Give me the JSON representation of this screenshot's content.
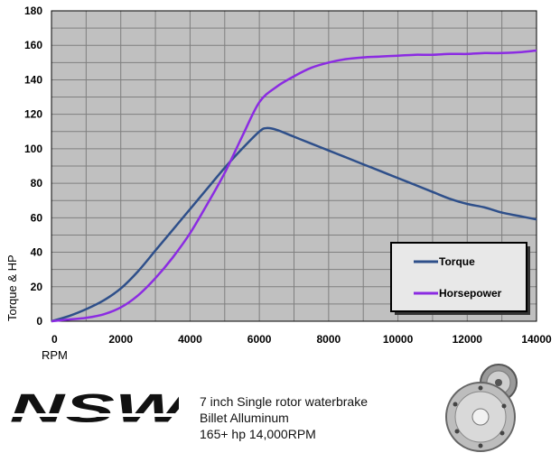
{
  "chart_data": {
    "type": "line",
    "xlabel": "RPM",
    "ylabel": "Torque & HP",
    "xlim": [
      0,
      14000
    ],
    "ylim": [
      0,
      180
    ],
    "x_ticks": [
      0,
      2000,
      4000,
      6000,
      8000,
      10000,
      12000,
      14000
    ],
    "y_ticks": [
      0,
      20,
      40,
      60,
      80,
      100,
      120,
      140,
      160,
      180
    ],
    "x_minor_step": 1000,
    "y_minor_step": 10,
    "grid": true,
    "background": "#c0c0c0",
    "legend_position": "bottom-right",
    "series": [
      {
        "name": "Torque",
        "color": "#2e4f8a",
        "x": [
          0,
          500,
          1000,
          1500,
          2000,
          2500,
          3000,
          3500,
          4000,
          4500,
          5000,
          5500,
          6000,
          6200,
          6500,
          7000,
          7500,
          8000,
          8500,
          9000,
          9500,
          10000,
          10500,
          11000,
          11500,
          12000,
          12500,
          13000,
          13500,
          14000
        ],
        "y": [
          0,
          3,
          7,
          12,
          19,
          29,
          41,
          53,
          65,
          77,
          89,
          100,
          110,
          112,
          111,
          107,
          103,
          99,
          95,
          91,
          87,
          83,
          79,
          75,
          71,
          68,
          66,
          63,
          61,
          59
        ]
      },
      {
        "name": "Horsepower",
        "color": "#8b2be2",
        "x": [
          0,
          500,
          1000,
          1500,
          2000,
          2500,
          3000,
          3500,
          4000,
          4500,
          5000,
          5500,
          6000,
          6500,
          7000,
          7500,
          8000,
          8500,
          9000,
          9500,
          10000,
          10500,
          11000,
          11500,
          12000,
          12500,
          13000,
          13500,
          14000
        ],
        "y": [
          0,
          1,
          2,
          4,
          8,
          15,
          25,
          37,
          51,
          68,
          86,
          107,
          127,
          136,
          142,
          147,
          150,
          152,
          153,
          153.5,
          154,
          154.5,
          154.5,
          155,
          155,
          155.5,
          155.5,
          156,
          157
        ]
      }
    ]
  },
  "footer": {
    "logo_text": "NSW",
    "captions": [
      "7 inch Single rotor waterbrake",
      "Billet Alluminum",
      "165+ hp 14,000RPM"
    ]
  }
}
